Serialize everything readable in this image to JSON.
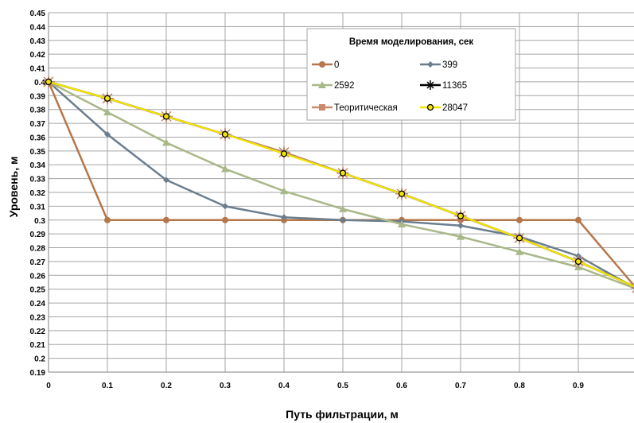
{
  "chart_data": {
    "type": "line",
    "title": "",
    "xlabel": "Путь фильтрации, м",
    "ylabel": "Уровень, м",
    "xlim": [
      0,
      1.0
    ],
    "ylim": [
      0.19,
      0.45
    ],
    "x_ticks": [
      "0",
      "0.1",
      "0.2",
      "0.3",
      "0.4",
      "0.5",
      "0.6",
      "0.7",
      "0.8",
      "0.9"
    ],
    "y_ticks": [
      "0.19",
      "0.2",
      "0.21",
      "0.22",
      "0.23",
      "0.24",
      "0.25",
      "0.26",
      "0.27",
      "0.28",
      "0.29",
      "0.3",
      "0.31",
      "0.32",
      "0.33",
      "0.34",
      "0.35",
      "0.36",
      "0.37",
      "0.38",
      "0.39",
      "0.4",
      "0.41",
      "0.42",
      "0.43",
      "0.44",
      "0.45"
    ],
    "grid": true,
    "legend_title": "Время моделирования, сек",
    "legend_position": "top-right",
    "series": [
      {
        "name": "0",
        "color": "#b5774a",
        "marker": "circle",
        "x": [
          0,
          0.1,
          0.2,
          0.3,
          0.4,
          0.5,
          0.6,
          0.7,
          0.8,
          0.9,
          1.0
        ],
        "y": [
          0.4,
          0.3,
          0.3,
          0.3,
          0.3,
          0.3,
          0.3,
          0.3,
          0.3,
          0.3,
          0.25
        ]
      },
      {
        "name": "399",
        "color": "#6b7e8e",
        "marker": "diamond",
        "x": [
          0,
          0.1,
          0.2,
          0.3,
          0.4,
          0.5,
          0.6,
          0.7,
          0.8,
          0.9,
          1.0
        ],
        "y": [
          0.4,
          0.362,
          0.329,
          0.31,
          0.302,
          0.3,
          0.299,
          0.296,
          0.288,
          0.274,
          0.25
        ]
      },
      {
        "name": "2592",
        "color": "#a9b888",
        "marker": "triangle",
        "x": [
          0,
          0.1,
          0.2,
          0.3,
          0.4,
          0.5,
          0.6,
          0.7,
          0.8,
          0.9,
          1.0
        ],
        "y": [
          0.4,
          0.378,
          0.356,
          0.337,
          0.321,
          0.308,
          0.297,
          0.288,
          0.277,
          0.266,
          0.25
        ]
      },
      {
        "name": "11365",
        "color": "#000000",
        "marker": "star",
        "x": [
          0,
          0.1,
          0.2,
          0.3,
          0.4,
          0.5,
          0.6,
          0.7,
          0.8,
          0.9,
          1.0
        ],
        "y": [
          0.4,
          0.388,
          0.375,
          0.362,
          0.349,
          0.334,
          0.319,
          0.303,
          0.287,
          0.27,
          0.251
        ]
      },
      {
        "name": "Теоритическая",
        "color": "#c88a6a",
        "marker": "square",
        "x": [
          0,
          0.1,
          0.2,
          0.3,
          0.4,
          0.5,
          0.6,
          0.7,
          0.8,
          0.9,
          1.0
        ],
        "y": [
          0.4,
          0.388,
          0.375,
          0.362,
          0.349,
          0.334,
          0.319,
          0.303,
          0.287,
          0.27,
          0.251
        ]
      },
      {
        "name": "28047",
        "color": "#f2e600",
        "marker": "circle-yellow",
        "x": [
          0,
          0.1,
          0.2,
          0.3,
          0.4,
          0.5,
          0.6,
          0.7,
          0.8,
          0.9,
          1.0
        ],
        "y": [
          0.4,
          0.388,
          0.375,
          0.362,
          0.348,
          0.334,
          0.319,
          0.303,
          0.287,
          0.27,
          0.251
        ]
      }
    ]
  }
}
